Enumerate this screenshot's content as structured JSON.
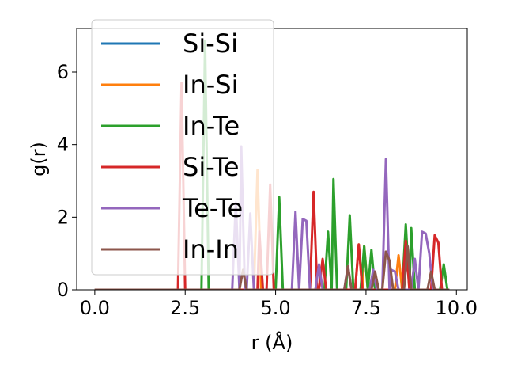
{
  "chart_data": {
    "type": "line",
    "title": "",
    "xlabel": "r (Å)",
    "ylabel": "g(r)",
    "xlim": [
      -0.5,
      10.3
    ],
    "ylim": [
      0,
      7.2
    ],
    "xticks": [
      0.0,
      2.5,
      5.0,
      7.5,
      10.0
    ],
    "xtick_labels": [
      "0.0",
      "2.5",
      "5.0",
      "7.5",
      "10.0"
    ],
    "yticks": [
      0,
      2,
      4,
      6
    ],
    "ytick_labels": [
      "0",
      "2",
      "4",
      "6"
    ],
    "grid": false,
    "legend_position": "upper-left",
    "series": [
      {
        "name": "Si-Si",
        "color": "#1f77b4",
        "points": [
          [
            0,
            0
          ],
          [
            9.8,
            0
          ]
        ]
      },
      {
        "name": "In-Si",
        "color": "#ff7f0e",
        "points": [
          [
            0,
            0
          ],
          [
            4.4,
            0
          ],
          [
            4.5,
            3.3
          ],
          [
            4.6,
            0
          ],
          [
            7.2,
            0
          ],
          [
            7.3,
            1.25
          ],
          [
            7.4,
            0
          ],
          [
            7.45,
            1.2
          ],
          [
            7.55,
            0
          ],
          [
            8.3,
            0
          ],
          [
            8.4,
            0.95
          ],
          [
            8.5,
            0
          ],
          [
            9.8,
            0
          ]
        ]
      },
      {
        "name": "In-Te",
        "color": "#2ca02c",
        "points": [
          [
            0,
            0
          ],
          [
            2.95,
            0
          ],
          [
            3.05,
            6.85
          ],
          [
            3.15,
            0
          ],
          [
            5.0,
            0
          ],
          [
            5.1,
            2.55
          ],
          [
            5.2,
            0
          ],
          [
            6.35,
            0
          ],
          [
            6.45,
            1.6
          ],
          [
            6.55,
            0
          ],
          [
            6.6,
            3.05
          ],
          [
            6.7,
            0
          ],
          [
            6.95,
            0
          ],
          [
            7.05,
            2.05
          ],
          [
            7.15,
            0
          ],
          [
            7.35,
            0
          ],
          [
            7.45,
            1.2
          ],
          [
            7.55,
            0
          ],
          [
            7.65,
            1.1
          ],
          [
            7.75,
            0
          ],
          [
            8.5,
            0
          ],
          [
            8.6,
            1.8
          ],
          [
            8.7,
            0
          ],
          [
            8.75,
            1.7
          ],
          [
            8.85,
            0
          ],
          [
            9.55,
            0
          ],
          [
            9.65,
            0.7
          ],
          [
            9.75,
            0
          ],
          [
            9.8,
            0
          ]
        ]
      },
      {
        "name": "Si-Te",
        "color": "#d62728",
        "points": [
          [
            0,
            0
          ],
          [
            2.3,
            0
          ],
          [
            2.4,
            5.7
          ],
          [
            2.5,
            0
          ],
          [
            4.5,
            0
          ],
          [
            4.55,
            1.6
          ],
          [
            4.65,
            0
          ],
          [
            4.75,
            0
          ],
          [
            4.85,
            2.9
          ],
          [
            4.95,
            0
          ],
          [
            5.95,
            0
          ],
          [
            6.05,
            2.7
          ],
          [
            6.15,
            0
          ],
          [
            6.2,
            0
          ],
          [
            6.3,
            0.85
          ],
          [
            6.4,
            0
          ],
          [
            7.2,
            0
          ],
          [
            7.3,
            1.25
          ],
          [
            7.4,
            0
          ],
          [
            8.5,
            0
          ],
          [
            8.6,
            1.35
          ],
          [
            8.7,
            0
          ],
          [
            9.3,
            0
          ],
          [
            9.4,
            1.5
          ],
          [
            9.5,
            1.3
          ],
          [
            9.6,
            0
          ],
          [
            9.8,
            0
          ]
        ]
      },
      {
        "name": "Te-Te",
        "color": "#9467bd",
        "points": [
          [
            0,
            0
          ],
          [
            3.8,
            0
          ],
          [
            3.9,
            2.4
          ],
          [
            4.0,
            0
          ],
          [
            4.05,
            3.95
          ],
          [
            4.15,
            0
          ],
          [
            4.2,
            0
          ],
          [
            4.3,
            2.1
          ],
          [
            4.4,
            0
          ],
          [
            5.45,
            0
          ],
          [
            5.55,
            2.15
          ],
          [
            5.65,
            0
          ],
          [
            5.75,
            1.95
          ],
          [
            5.85,
            1.9
          ],
          [
            5.95,
            0
          ],
          [
            6.1,
            0
          ],
          [
            6.2,
            0.7
          ],
          [
            6.3,
            0
          ],
          [
            6.9,
            0
          ],
          [
            7.0,
            0.65
          ],
          [
            7.1,
            0
          ],
          [
            7.6,
            0
          ],
          [
            7.7,
            0.55
          ],
          [
            7.8,
            0
          ],
          [
            7.95,
            0
          ],
          [
            8.05,
            3.6
          ],
          [
            8.15,
            0
          ],
          [
            8.2,
            0.55
          ],
          [
            8.3,
            0.5
          ],
          [
            8.4,
            0
          ],
          [
            8.75,
            0
          ],
          [
            8.85,
            0.85
          ],
          [
            8.95,
            0
          ],
          [
            9.05,
            1.6
          ],
          [
            9.15,
            1.55
          ],
          [
            9.25,
            1.0
          ],
          [
            9.35,
            0
          ],
          [
            9.8,
            0
          ]
        ]
      },
      {
        "name": "In-In",
        "color": "#8c564b",
        "points": [
          [
            0,
            0
          ],
          [
            4.0,
            0
          ],
          [
            4.1,
            0.55
          ],
          [
            4.2,
            0
          ],
          [
            6.9,
            0
          ],
          [
            7.0,
            0.65
          ],
          [
            7.1,
            0
          ],
          [
            7.65,
            0
          ],
          [
            7.75,
            0.5
          ],
          [
            7.85,
            0
          ],
          [
            7.95,
            0
          ],
          [
            8.05,
            1.05
          ],
          [
            8.15,
            0.8
          ],
          [
            8.25,
            0
          ],
          [
            8.55,
            0
          ],
          [
            8.65,
            1.2
          ],
          [
            8.75,
            0
          ],
          [
            9.2,
            0
          ],
          [
            9.3,
            0.5
          ],
          [
            9.4,
            0
          ],
          [
            9.8,
            0
          ]
        ]
      }
    ]
  }
}
